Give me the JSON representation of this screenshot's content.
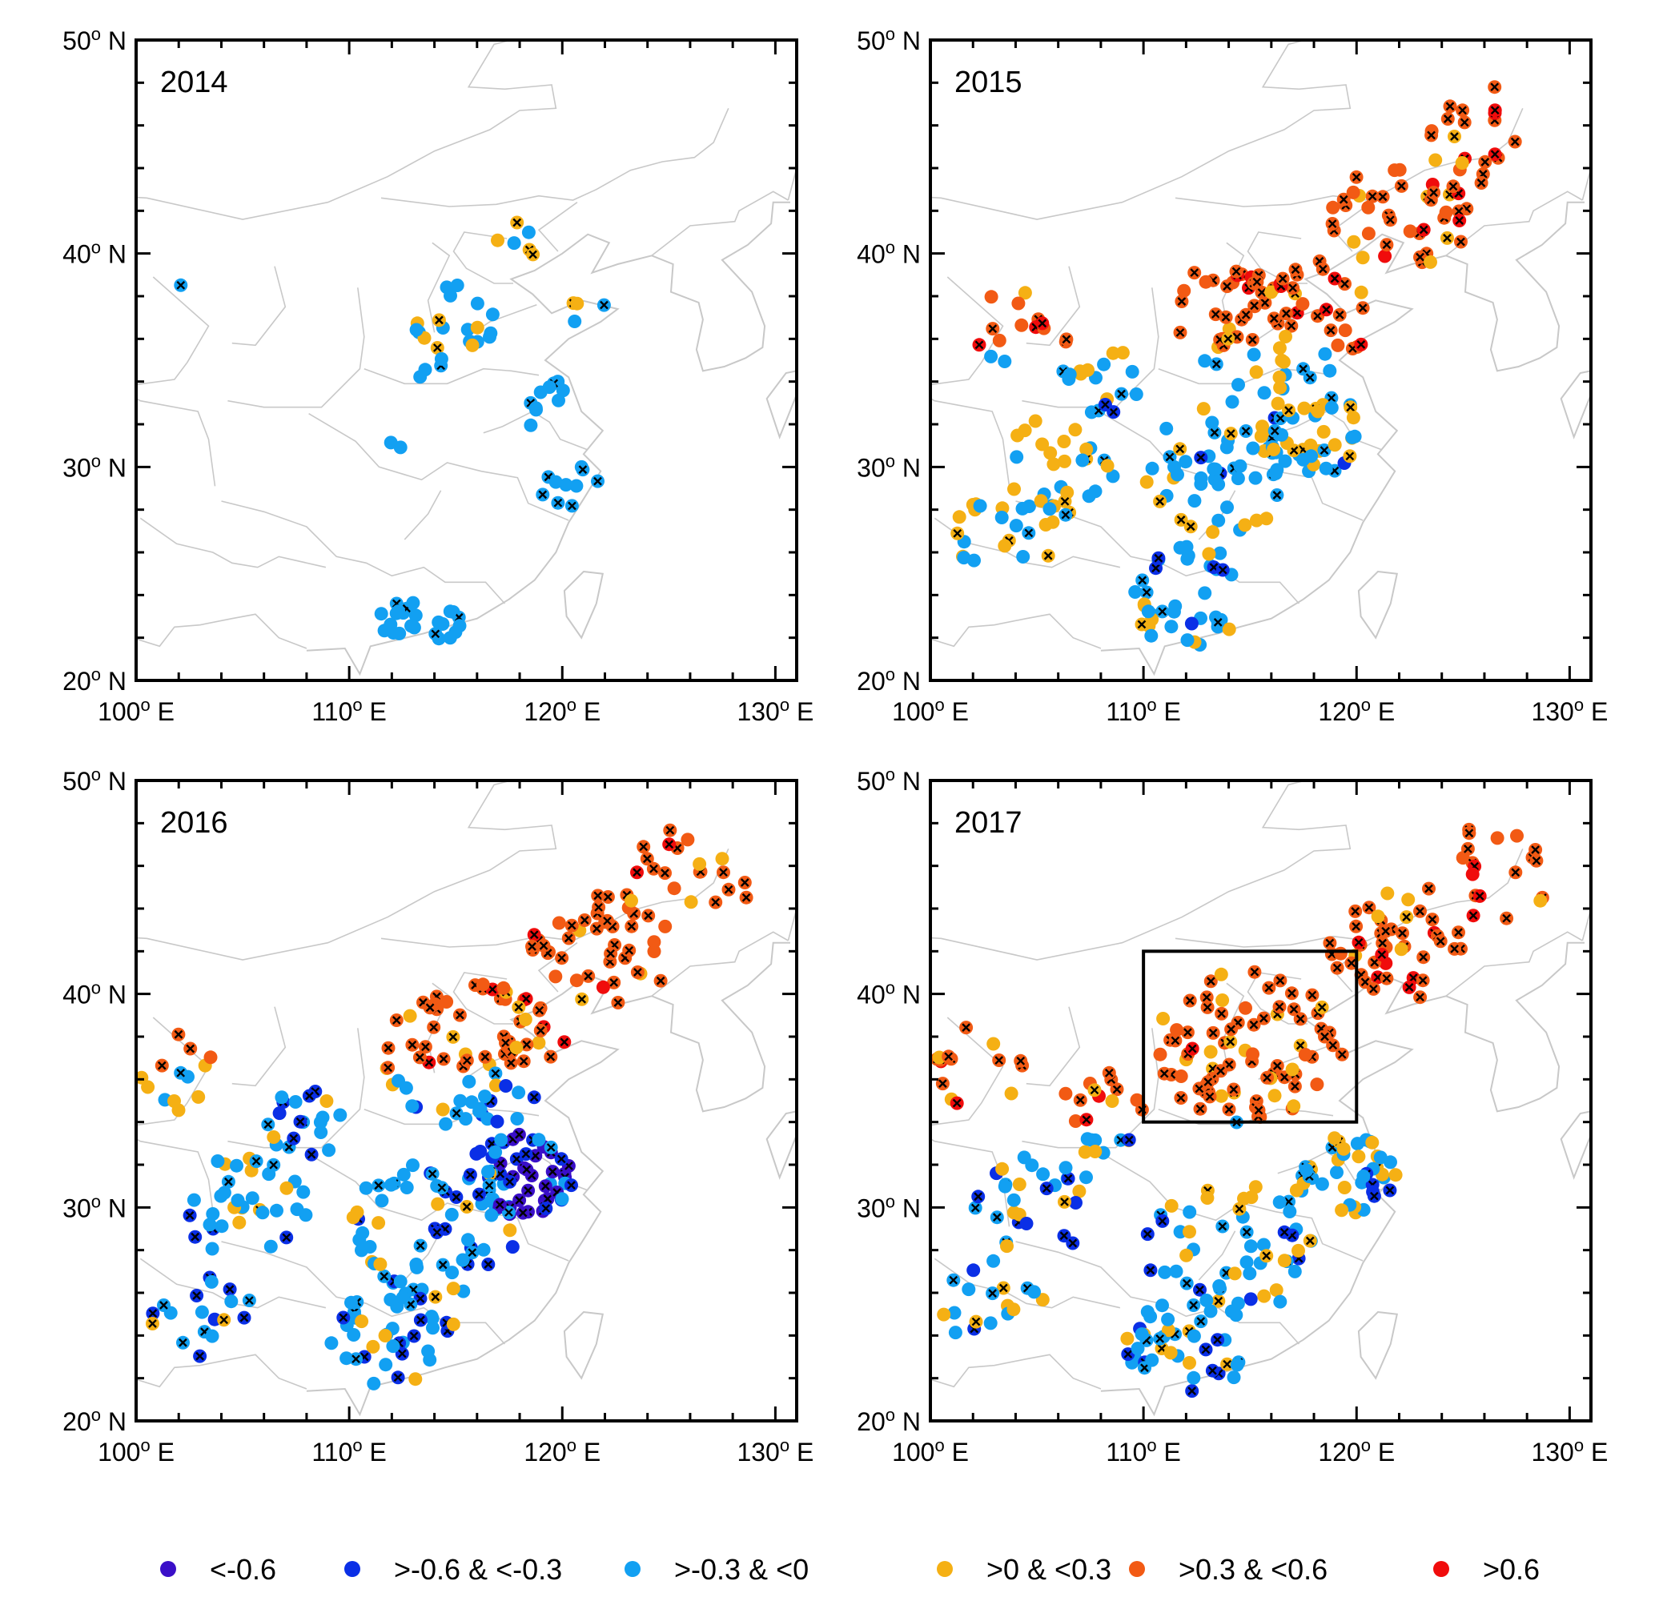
{
  "figure": {
    "lon_range": [
      100,
      130
    ],
    "lat_range": [
      20,
      50
    ],
    "lon_ticks": [
      {
        "value": 100,
        "label": "100",
        "sup": "o",
        "suffix": " E"
      },
      {
        "value": 110,
        "label": "110",
        "sup": "o",
        "suffix": " E"
      },
      {
        "value": 120,
        "label": "120",
        "sup": "o",
        "suffix": " E"
      },
      {
        "value": 130,
        "label": "130",
        "sup": "o",
        "suffix": " E"
      }
    ],
    "lat_ticks": [
      {
        "value": 20,
        "label": "20",
        "sup": "o",
        "suffix": " N"
      },
      {
        "value": 30,
        "label": "30",
        "sup": "o",
        "suffix": " N"
      },
      {
        "value": 40,
        "label": "40",
        "sup": "o",
        "suffix": " N"
      },
      {
        "value": 50,
        "label": "50",
        "sup": "o",
        "suffix": " N"
      }
    ],
    "colors": {
      "lt_-0.6": "#3a0fc8",
      "-0.6_-0.3": "#0a2fe6",
      "-0.3_0": "#12a0f2",
      "0_0.3": "#f5b014",
      "0.3_0.6": "#f25a14",
      "gt_0.6": "#f00c0c",
      "map_lines": "#c8c8c8",
      "significance_marker": "#000000"
    }
  },
  "panels": [
    {
      "year": "2014",
      "region_box": null
    },
    {
      "year": "2015",
      "region_box": null
    },
    {
      "year": "2016",
      "region_box": null
    },
    {
      "year": "2017",
      "region_box": {
        "lon": [
          110,
          120
        ],
        "lat": [
          34,
          42
        ]
      }
    }
  ],
  "legend": [
    {
      "key": "lt_-0.6",
      "label": "<-0.6"
    },
    {
      "key": "-0.6_-0.3",
      "label": ">-0.6 & <-0.3"
    },
    {
      "key": "-0.3_0",
      "label": ">-0.3 & <0"
    },
    {
      "key": "0_0.3",
      "label": ">0 & <0.3"
    },
    {
      "key": "0.3_0.6",
      "label": ">0.3 & <0.6"
    },
    {
      "key": "gt_0.6",
      "label": ">0.6"
    }
  ]
}
